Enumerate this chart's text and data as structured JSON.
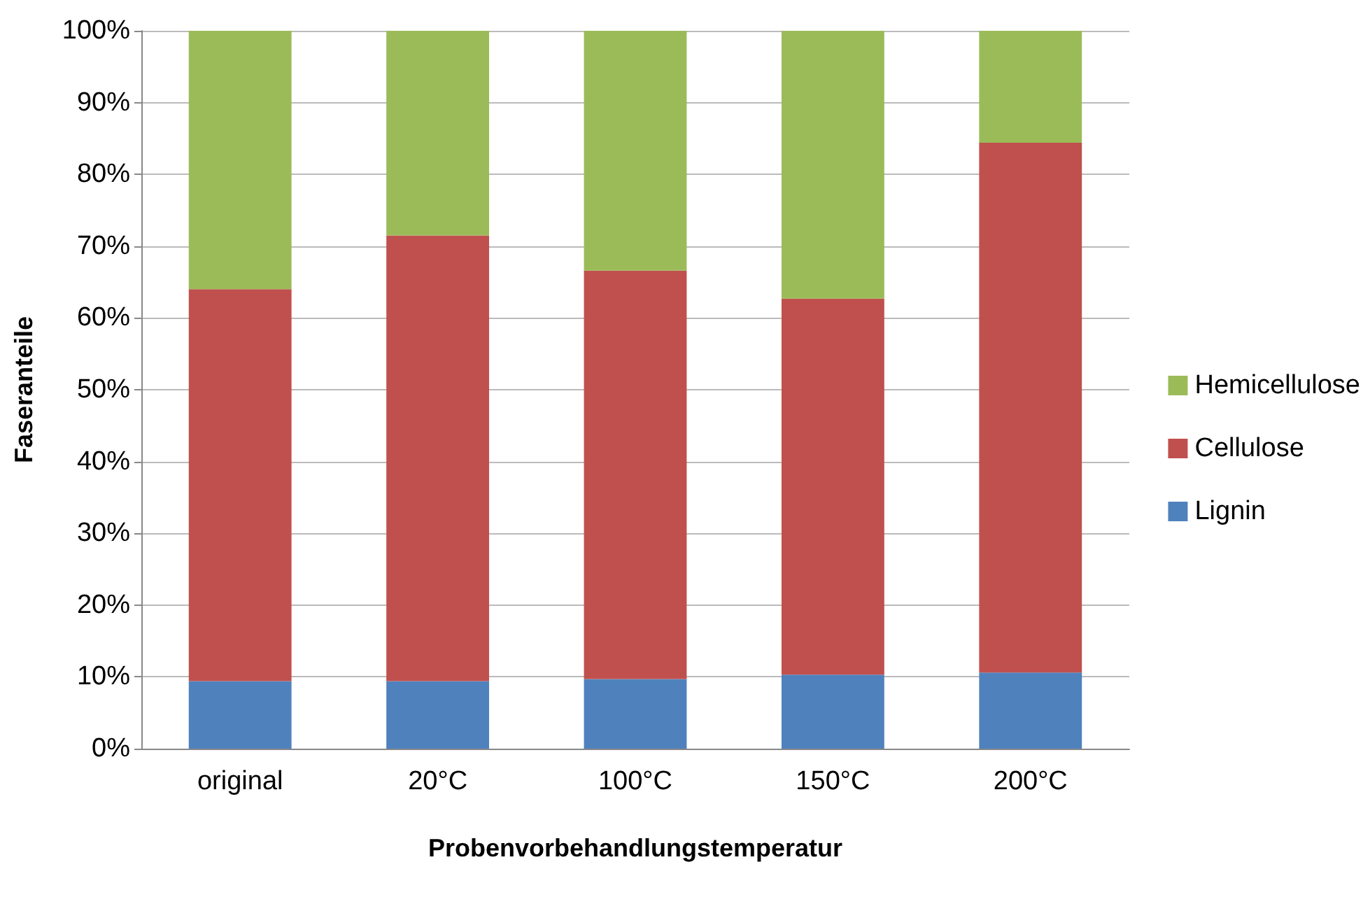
{
  "chart_data": {
    "type": "bar",
    "stacked": true,
    "xlabel": "Probenvorbehandlungstemperatur",
    "ylabel": "Faseranteile",
    "categories": [
      "original",
      "20°C",
      "100°C",
      "150°C",
      "200°C"
    ],
    "series": [
      {
        "name": "Lignin",
        "color": "#4f81bd",
        "values": [
          9.4,
          9.4,
          9.7,
          10.3,
          10.6
        ]
      },
      {
        "name": "Cellulose",
        "color": "#c0504d",
        "values": [
          54.6,
          62.1,
          56.9,
          52.4,
          73.8
        ]
      },
      {
        "name": "Hemicellulose",
        "color": "#9bbb59",
        "values": [
          36.0,
          28.5,
          33.4,
          37.3,
          15.6
        ]
      }
    ],
    "ylim": [
      0,
      100
    ],
    "yticks": [
      {
        "value": 0,
        "label": "0%"
      },
      {
        "value": 10,
        "label": "10%"
      },
      {
        "value": 20,
        "label": "20%"
      },
      {
        "value": 30,
        "label": "30%"
      },
      {
        "value": 40,
        "label": "40%"
      },
      {
        "value": 50,
        "label": "50%"
      },
      {
        "value": 60,
        "label": "60%"
      },
      {
        "value": 70,
        "label": "70%"
      },
      {
        "value": 80,
        "label": "80%"
      },
      {
        "value": 90,
        "label": "90%"
      },
      {
        "value": 100,
        "label": "100%"
      }
    ],
    "grid": "y",
    "legend": "right"
  }
}
